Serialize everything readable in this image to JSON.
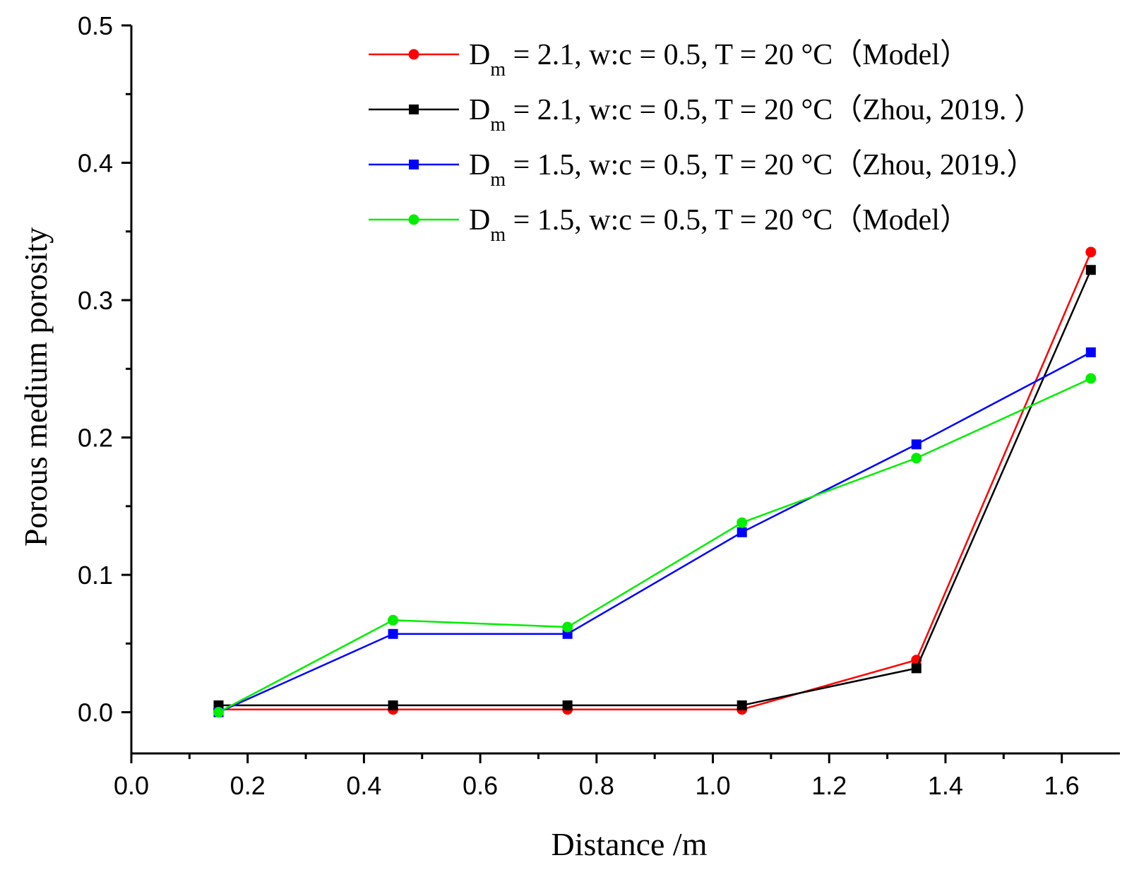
{
  "chart_data": {
    "type": "line",
    "title": "",
    "xlabel": "Distance /m",
    "ylabel": "Porous medium porosity",
    "xlim": [
      0.0,
      1.7
    ],
    "ylim": [
      -0.03,
      0.5
    ],
    "xticks": [
      "0.0",
      "0.2",
      "0.4",
      "0.6",
      "0.8",
      "1.0",
      "1.2",
      "1.4",
      "1.6"
    ],
    "yticks": [
      "0.0",
      "0.1",
      "0.2",
      "0.3",
      "0.4",
      "0.5"
    ],
    "legend_position": "top-right",
    "x": [
      0.15,
      0.45,
      0.75,
      1.05,
      1.35,
      1.65
    ],
    "series": [
      {
        "name": "D_m = 2.1, w:c = 0.5, T = 20 °C（Model）",
        "label_main": "D",
        "label_sub": "m",
        "label_rest": " = 2.1, w:c = 0.5, T = 20 °C（Model）",
        "color": "#ff0000",
        "marker": "circle",
        "values": [
          0.002,
          0.002,
          0.002,
          0.002,
          0.038,
          0.335
        ]
      },
      {
        "name": "D_m = 2.1, w:c = 0.5, T = 20 °C（Zhou, 2019. ）",
        "label_main": "D",
        "label_sub": "m",
        "label_rest": " = 2.1, w:c = 0.5, T = 20 °C（Zhou, 2019. ）",
        "color": "#000000",
        "marker": "square",
        "values": [
          0.005,
          0.005,
          0.005,
          0.005,
          0.032,
          0.322
        ]
      },
      {
        "name": "D_m = 1.5, w:c = 0.5, T = 20 °C（Zhou, 2019.）",
        "label_main": "D",
        "label_sub": "m",
        "label_rest": " = 1.5, w:c = 0.5, T = 20 °C（Zhou, 2019.）",
        "color": "#0000ff",
        "marker": "square",
        "values": [
          0.0,
          0.057,
          0.057,
          0.131,
          0.195,
          0.262
        ]
      },
      {
        "name": "D_m = 1.5, w:c = 0.5, T = 20 °C（Model）",
        "label_main": "D",
        "label_sub": "m",
        "label_rest": " = 1.5, w:c = 0.5, T = 20 °C（Model）",
        "color": "#00ee00",
        "marker": "circle",
        "values": [
          0.0,
          0.067,
          0.062,
          0.138,
          0.185,
          0.243
        ]
      }
    ]
  }
}
